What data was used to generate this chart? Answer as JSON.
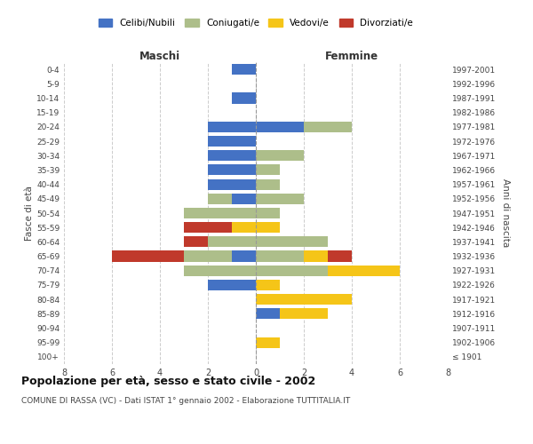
{
  "age_groups": [
    "100+",
    "95-99",
    "90-94",
    "85-89",
    "80-84",
    "75-79",
    "70-74",
    "65-69",
    "60-64",
    "55-59",
    "50-54",
    "45-49",
    "40-44",
    "35-39",
    "30-34",
    "25-29",
    "20-24",
    "15-19",
    "10-14",
    "5-9",
    "0-4"
  ],
  "birth_years": [
    "≤ 1901",
    "1902-1906",
    "1907-1911",
    "1912-1916",
    "1917-1921",
    "1922-1926",
    "1927-1931",
    "1932-1936",
    "1937-1941",
    "1942-1946",
    "1947-1951",
    "1952-1956",
    "1957-1961",
    "1962-1966",
    "1967-1971",
    "1972-1976",
    "1977-1981",
    "1982-1986",
    "1987-1991",
    "1992-1996",
    "1997-2001"
  ],
  "maschi": {
    "celibi": [
      0,
      0,
      0,
      0,
      0,
      2,
      0,
      1,
      0,
      0,
      0,
      1,
      2,
      2,
      2,
      2,
      2,
      0,
      1,
      0,
      1
    ],
    "coniugati": [
      0,
      0,
      0,
      0,
      0,
      0,
      3,
      2,
      2,
      0,
      3,
      1,
      0,
      0,
      0,
      0,
      0,
      0,
      0,
      0,
      0
    ],
    "vedovi": [
      0,
      0,
      0,
      0,
      0,
      0,
      0,
      0,
      0,
      1,
      0,
      0,
      0,
      0,
      0,
      0,
      0,
      0,
      0,
      0,
      0
    ],
    "divorziati": [
      0,
      0,
      0,
      0,
      0,
      0,
      0,
      3,
      1,
      2,
      0,
      0,
      0,
      0,
      0,
      0,
      0,
      0,
      0,
      0,
      0
    ]
  },
  "femmine": {
    "nubili": [
      0,
      0,
      0,
      1,
      0,
      0,
      0,
      0,
      0,
      0,
      0,
      0,
      0,
      0,
      0,
      0,
      2,
      0,
      0,
      0,
      0
    ],
    "coniugate": [
      0,
      0,
      0,
      0,
      0,
      0,
      3,
      2,
      3,
      0,
      1,
      2,
      1,
      1,
      2,
      0,
      2,
      0,
      0,
      0,
      0
    ],
    "vedove": [
      0,
      1,
      0,
      2,
      4,
      1,
      3,
      1,
      0,
      1,
      0,
      0,
      0,
      0,
      0,
      0,
      0,
      0,
      0,
      0,
      0
    ],
    "divorziate": [
      0,
      0,
      0,
      0,
      0,
      0,
      0,
      1,
      0,
      0,
      0,
      0,
      0,
      0,
      0,
      0,
      0,
      0,
      0,
      0,
      0
    ]
  },
  "colors": {
    "celibi_nubili": "#4472C4",
    "coniugati": "#ADBE8A",
    "vedovi": "#F5C518",
    "divorziati": "#C0392B"
  },
  "title": "Popolazione per età, sesso e stato civile - 2002",
  "subtitle": "COMUNE DI RASSA (VC) - Dati ISTAT 1° gennaio 2002 - Elaborazione TUTTITALIA.IT",
  "xlabel_left": "Maschi",
  "xlabel_right": "Femmine",
  "ylabel_left": "Fasce di età",
  "ylabel_right": "Anni di nascita",
  "xlim": 8,
  "background_color": "#ffffff"
}
